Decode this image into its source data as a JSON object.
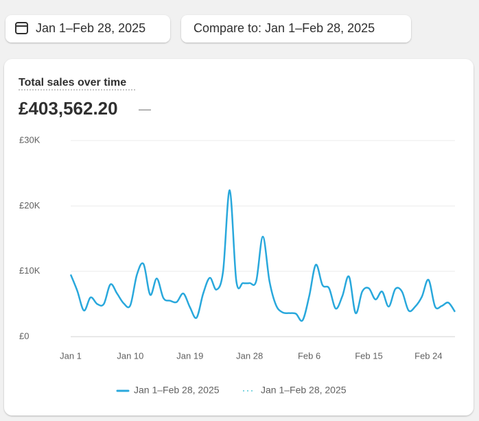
{
  "header": {
    "date_range": "Jan 1–Feb 28, 2025",
    "compare": "Compare to: Jan 1–Feb 28, 2025"
  },
  "card": {
    "title": "Total sales over time",
    "amount": "£403,562.20",
    "change": "—"
  },
  "chart_data": {
    "type": "line",
    "categories": [
      "Jan 1",
      null,
      null,
      null,
      null,
      null,
      null,
      null,
      null,
      "Jan 10",
      null,
      null,
      null,
      null,
      null,
      null,
      null,
      null,
      "Jan 19",
      null,
      null,
      null,
      null,
      null,
      null,
      null,
      null,
      "Jan 28",
      null,
      null,
      null,
      null,
      null,
      null,
      null,
      null,
      "Feb 6",
      null,
      null,
      null,
      null,
      null,
      null,
      null,
      null,
      "Feb 15",
      null,
      null,
      null,
      null,
      null,
      null,
      null,
      null,
      "Feb 24",
      null,
      null,
      null,
      null
    ],
    "series": [
      {
        "name": "Jan 1–Feb 28, 2025",
        "color": "#29a8dc",
        "values": [
          9500,
          7000,
          4000,
          6000,
          5000,
          5000,
          8000,
          6600,
          5100,
          4800,
          9500,
          11100,
          6400,
          8900,
          5900,
          5500,
          5300,
          6600,
          4500,
          2900,
          6600,
          9000,
          7200,
          10000,
          22400,
          8500,
          8200,
          8200,
          8500,
          15300,
          8500,
          4800,
          3700,
          3600,
          3500,
          2500,
          6200,
          11000,
          7900,
          7400,
          4300,
          6200,
          9200,
          3600,
          6900,
          7400,
          5700,
          6900,
          4600,
          7300,
          6900,
          4000,
          4600,
          6100,
          8700,
          4600,
          4700,
          5200,
          3800
        ]
      }
    ],
    "comparison": {
      "name": "Jan 1–Feb 28, 2025",
      "color": "#7fd6e0"
    },
    "ylim": [
      0,
      30000
    ],
    "yticks": [
      {
        "value": 0,
        "label": "£0"
      },
      {
        "value": 10000,
        "label": "£10K"
      },
      {
        "value": 20000,
        "label": "£20K"
      },
      {
        "value": 30000,
        "label": "£30K"
      }
    ],
    "grid": true
  }
}
